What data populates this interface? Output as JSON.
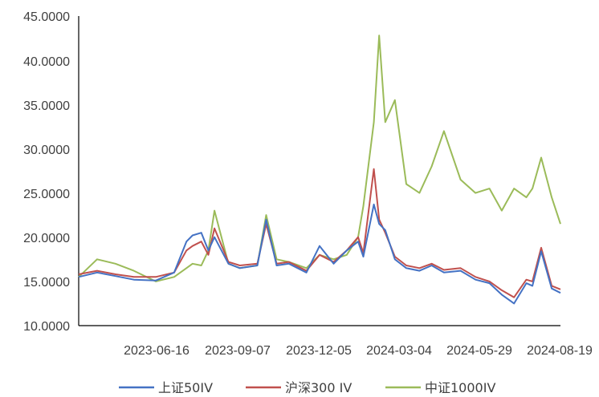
{
  "chart_data": {
    "type": "line",
    "title": "",
    "xlabel": "",
    "ylabel": "",
    "ylim": [
      10,
      45
    ],
    "y_ticks": [
      "45.0000",
      "40.0000",
      "35.0000",
      "30.0000",
      "25.0000",
      "20.0000",
      "15.0000",
      "10.0000"
    ],
    "x_ticks": [
      "2023-06-16",
      "2023-09-07",
      "2023-12-05",
      "2024-03-04",
      "2024-05-29",
      "2024-08-19"
    ],
    "x_range": [
      "2023-03-20",
      "2024-09-20"
    ],
    "grid": false,
    "legend_position": "bottom",
    "series": [
      {
        "name": "上证50IV",
        "color": "#4472C4",
        "x": [
          "2023-03-20",
          "2023-04-10",
          "2023-05-01",
          "2023-05-22",
          "2023-06-16",
          "2023-07-07",
          "2023-07-21",
          "2023-07-28",
          "2023-08-07",
          "2023-08-15",
          "2023-08-22",
          "2023-09-07",
          "2023-09-20",
          "2023-10-10",
          "2023-10-20",
          "2023-11-01",
          "2023-11-15",
          "2023-12-05",
          "2023-12-20",
          "2024-01-05",
          "2024-01-20",
          "2024-02-02",
          "2024-02-08",
          "2024-02-20",
          "2024-02-26",
          "2024-03-04",
          "2024-03-15",
          "2024-03-28",
          "2024-04-12",
          "2024-04-26",
          "2024-05-10",
          "2024-05-29",
          "2024-06-15",
          "2024-07-01",
          "2024-07-15",
          "2024-07-29",
          "2024-08-12",
          "2024-08-19",
          "2024-08-29",
          "2024-09-10",
          "2024-09-20"
        ],
        "values": [
          15.5,
          16.0,
          15.6,
          15.2,
          15.1,
          16.0,
          19.5,
          20.2,
          20.5,
          18.5,
          20.0,
          17.0,
          16.5,
          16.8,
          22.0,
          16.8,
          17.0,
          16.0,
          19.0,
          17.0,
          18.5,
          19.5,
          17.8,
          23.7,
          21.5,
          20.8,
          17.5,
          16.5,
          16.2,
          16.8,
          16.0,
          16.2,
          15.2,
          14.8,
          13.5,
          12.5,
          14.8,
          14.5,
          18.4,
          14.2,
          13.7
        ]
      },
      {
        "name": "沪深300 IV",
        "color": "#C0504D",
        "x": [
          "2023-03-20",
          "2023-04-10",
          "2023-05-01",
          "2023-05-22",
          "2023-06-16",
          "2023-07-07",
          "2023-07-21",
          "2023-07-28",
          "2023-08-07",
          "2023-08-15",
          "2023-08-22",
          "2023-09-07",
          "2023-09-20",
          "2023-10-10",
          "2023-10-20",
          "2023-11-01",
          "2023-11-15",
          "2023-12-05",
          "2023-12-20",
          "2024-01-05",
          "2024-01-20",
          "2024-02-02",
          "2024-02-08",
          "2024-02-20",
          "2024-02-26",
          "2024-03-04",
          "2024-03-15",
          "2024-03-28",
          "2024-04-12",
          "2024-04-26",
          "2024-05-10",
          "2024-05-29",
          "2024-06-15",
          "2024-07-01",
          "2024-07-15",
          "2024-07-29",
          "2024-08-12",
          "2024-08-19",
          "2024-08-29",
          "2024-09-10",
          "2024-09-20"
        ],
        "values": [
          15.8,
          16.2,
          15.8,
          15.5,
          15.5,
          16.0,
          18.5,
          19.0,
          19.5,
          18.0,
          21.0,
          17.2,
          16.8,
          17.0,
          21.5,
          17.0,
          17.2,
          16.2,
          18.0,
          17.2,
          18.5,
          20.0,
          18.2,
          27.7,
          22.0,
          20.5,
          17.8,
          16.8,
          16.5,
          17.0,
          16.3,
          16.5,
          15.5,
          15.0,
          14.0,
          13.2,
          15.2,
          15.0,
          18.8,
          14.5,
          14.1
        ]
      },
      {
        "name": "中证1000IV",
        "color": "#9BBB59",
        "x": [
          "2023-03-20",
          "2023-04-10",
          "2023-05-01",
          "2023-05-22",
          "2023-06-16",
          "2023-07-07",
          "2023-07-21",
          "2023-07-28",
          "2023-08-07",
          "2023-08-15",
          "2023-08-22",
          "2023-09-07",
          "2023-09-20",
          "2023-10-10",
          "2023-10-20",
          "2023-11-01",
          "2023-11-15",
          "2023-12-05",
          "2023-12-20",
          "2024-01-05",
          "2024-01-20",
          "2024-02-02",
          "2024-02-08",
          "2024-02-20",
          "2024-02-26",
          "2024-03-04",
          "2024-03-15",
          "2024-03-28",
          "2024-04-12",
          "2024-04-26",
          "2024-05-10",
          "2024-05-29",
          "2024-06-15",
          "2024-07-01",
          "2024-07-15",
          "2024-07-29",
          "2024-08-12",
          "2024-08-19",
          "2024-08-29",
          "2024-09-10",
          "2024-09-20"
        ],
        "values": [
          15.5,
          17.5,
          17.0,
          16.2,
          15.0,
          15.5,
          16.5,
          17.0,
          16.8,
          18.5,
          23.0,
          17.0,
          16.5,
          16.8,
          22.5,
          17.5,
          17.2,
          16.5,
          18.0,
          17.5,
          18.0,
          20.0,
          23.5,
          33.0,
          42.8,
          33.0,
          35.5,
          26.0,
          25.0,
          28.0,
          32.0,
          26.5,
          25.0,
          25.5,
          23.0,
          25.5,
          24.5,
          25.5,
          29.0,
          24.5,
          21.5
        ]
      }
    ]
  }
}
